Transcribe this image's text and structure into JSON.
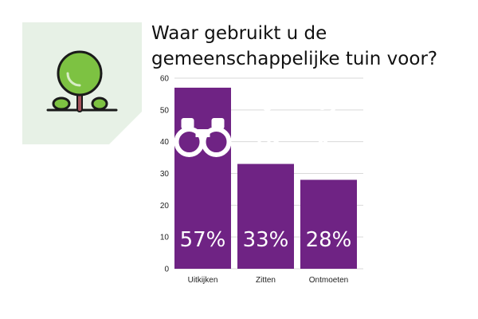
{
  "title": "Waar gebruikt u de gemeenschappelijke tuin voor?",
  "colors": {
    "bar": "#6f2384",
    "grid": "#d9d9d9",
    "logo_bg": "#e7f1e6",
    "tree_green": "#7dc242",
    "trunk": "#a4525a"
  },
  "logo_icon": "tree-icon",
  "chart_data": {
    "type": "bar",
    "title": "Waar gebruikt u de gemeenschappelijke tuin voor?",
    "categories": [
      "Uitkijken",
      "Zitten",
      "Ontmoeten"
    ],
    "values": [
      57,
      33,
      28
    ],
    "value_labels": [
      "57%",
      "33%",
      "28%"
    ],
    "bar_icons": [
      "binoculars-icon",
      "seated-person-icon",
      "waving-person-icon"
    ],
    "ylim": [
      0,
      60
    ],
    "yticks": [
      0,
      10,
      20,
      30,
      40,
      50,
      60
    ],
    "xlabel": "",
    "ylabel": "",
    "grid": true,
    "legend": "none"
  }
}
